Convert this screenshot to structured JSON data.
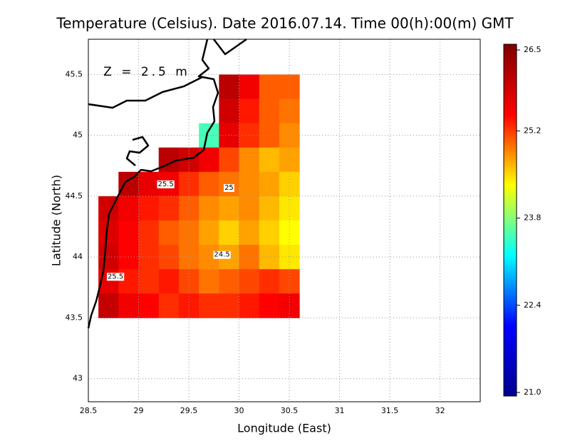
{
  "chart_data": {
    "type": "heatmap",
    "title": "Temperature (Celsius). Date 2016.07.14. Time 00(h):00(m) GMT",
    "x_label": "Longitude (East)",
    "y_label": "Latitude (North)",
    "x": [
      28.7,
      28.9,
      29.1,
      29.3,
      29.5,
      29.7,
      29.9,
      30.1,
      30.3,
      30.5
    ],
    "y": [
      45.4,
      45.2,
      45.0,
      44.8,
      44.6,
      44.4,
      44.2,
      44.0,
      43.8,
      43.6
    ],
    "values": [
      [
        null,
        null,
        null,
        null,
        null,
        null,
        26.0,
        25.5,
        25.0,
        25.0
      ],
      [
        null,
        null,
        null,
        null,
        null,
        null,
        25.8,
        25.3,
        25.0,
        24.9
      ],
      [
        null,
        null,
        null,
        null,
        null,
        23.5,
        25.6,
        25.2,
        25.0,
        24.8
      ],
      [
        null,
        null,
        null,
        26.0,
        25.8,
        25.5,
        25.1,
        24.8,
        24.6,
        24.7
      ],
      [
        null,
        26.0,
        25.6,
        25.5,
        25.2,
        25.0,
        24.9,
        24.8,
        24.7,
        24.5
      ],
      [
        25.8,
        25.5,
        25.3,
        25.2,
        25.0,
        24.8,
        24.7,
        24.8,
        24.6,
        24.4
      ],
      [
        25.7,
        25.4,
        25.2,
        25.0,
        24.9,
        24.7,
        24.5,
        24.7,
        24.5,
        24.3
      ],
      [
        25.8,
        25.4,
        25.2,
        25.1,
        24.9,
        24.8,
        24.7,
        24.9,
        24.6,
        24.4
      ],
      [
        25.6,
        25.3,
        25.2,
        25.3,
        25.1,
        24.9,
        25.0,
        25.1,
        25.2,
        25.1
      ],
      [
        25.9,
        25.5,
        25.4,
        25.2,
        25.3,
        25.2,
        25.2,
        25.3,
        25.4,
        25.5
      ]
    ],
    "xlim": [
      28.5,
      32.4
    ],
    "ylim": [
      42.81,
      45.79
    ],
    "xticks": [
      28.5,
      29,
      29.5,
      30,
      30.5,
      31,
      31.5,
      32
    ],
    "yticks": [
      43,
      43.5,
      44,
      44.5,
      45,
      45.5
    ],
    "grid": true,
    "clim": [
      21,
      26.5
    ],
    "colorbar_ticks": [
      {
        "value": 21,
        "label": "21.0"
      },
      22.4,
      23.8,
      25.2,
      26.5
    ],
    "colorscale": [
      "#00008f",
      "#0000ff",
      "#00ffff",
      "#ffff00",
      "#ff0000",
      "#800000"
    ],
    "annotations": [
      {
        "text": "Z = 2.5 m",
        "lon": 28.65,
        "lat": 45.52
      },
      {
        "text": "25.5",
        "lon": 29.27,
        "lat": 44.6
      },
      {
        "text": "25",
        "lon": 29.9,
        "lat": 44.57
      },
      {
        "text": "24.5",
        "lon": 29.83,
        "lat": 44.02
      },
      {
        "text": "25.5",
        "lon": 28.77,
        "lat": 43.84
      }
    ]
  }
}
